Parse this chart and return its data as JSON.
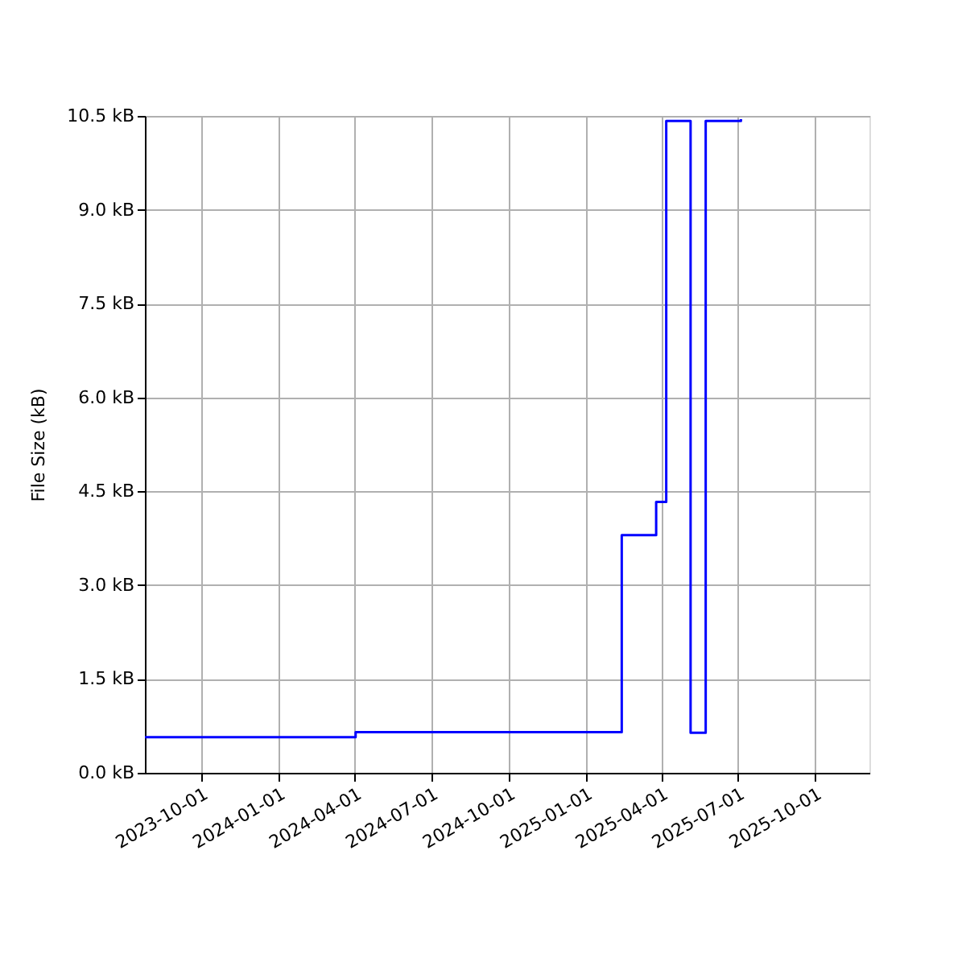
{
  "chart_data": {
    "type": "step",
    "ylabel": "File Size (kB)",
    "x": [
      "2023-07-26",
      "2024-04-02",
      "2025-02-13",
      "2025-03-26",
      "2025-04-07",
      "2025-05-06",
      "2025-05-24",
      "2025-07-05"
    ],
    "series": [
      {
        "color": "#0000ff",
        "values": [
          0.57,
          0.65,
          3.8,
          4.33,
          10.42,
          0.64,
          10.42,
          10.45
        ]
      }
    ],
    "xlim": [
      "2023-07-26",
      "2025-12-05"
    ],
    "xticks": [
      "2023-10-01",
      "2024-01-01",
      "2024-04-01",
      "2024-07-01",
      "2024-10-01",
      "2025-01-01",
      "2025-04-01",
      "2025-07-01",
      "2025-10-01"
    ],
    "ylim": [
      0,
      10.5
    ],
    "yticks": [
      {
        "value": 0,
        "label": "0.0 kB"
      },
      {
        "value": 1.5,
        "label": "1.5 kB"
      },
      {
        "value": 3,
        "label": "3.0 kB"
      },
      {
        "value": 4.5,
        "label": "4.5 kB"
      },
      {
        "value": 6,
        "label": "6.0 kB"
      },
      {
        "value": 7.5,
        "label": "7.5 kB"
      },
      {
        "value": 9,
        "label": "9.0 kB"
      },
      {
        "value": 10.5,
        "label": "10.5 kB"
      }
    ],
    "grid": true,
    "marker": "none",
    "line_style": "solid"
  }
}
